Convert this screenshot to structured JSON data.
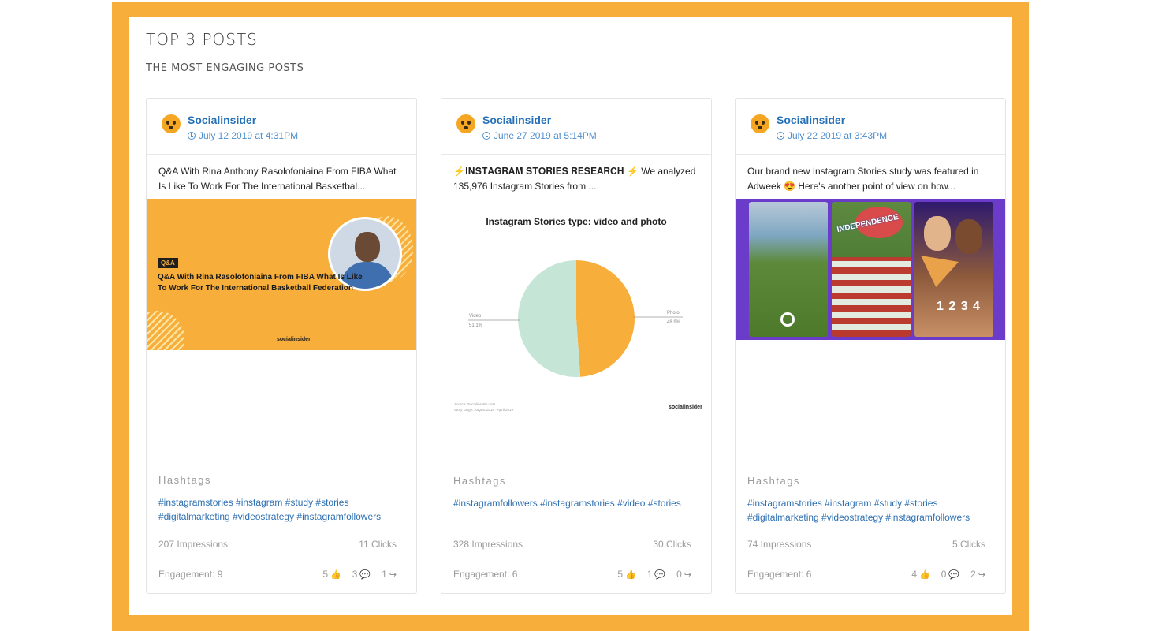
{
  "header": {
    "title": "TOP 3 POSTS",
    "subtitle": "THE MOST ENGAGING POSTS"
  },
  "colors": {
    "frame": "#f7ae3b",
    "link": "#2470b8",
    "hashtag": "#2c6fb1",
    "muted": "#9a9a9a"
  },
  "labels": {
    "hashtags": "Hashtags"
  },
  "posts": [
    {
      "page_name": "Socialinsider",
      "date": "July 12 2019 at 4:31PM",
      "caption": "Q&A With Rina Anthony Rasolofoniaina From FIBA What Is Like To Work For The International Basketbal...",
      "media": {
        "tag": "Q&A",
        "headline": "Q&A With Rina Rasolofoniaina From FIBA What Is Like To Work For The International Basketball Federation",
        "brand": "socialinsider"
      },
      "hashtags": "#instagramstories #instagram #study #stories #digitalmarketing #videostrategy #instagramfollowers",
      "impressions": "207 Impressions",
      "clicks": "11 Clicks",
      "engagement": "Engagement: 9",
      "likes": "5",
      "comments": "3",
      "shares": "1"
    },
    {
      "page_name": "Socialinsider",
      "date": "June 27 2019 at 5:14PM",
      "caption": "⚡𝐈𝐍𝐒𝐓𝐀𝐆𝐑𝐀𝐌 𝐒𝐓𝐎𝐑𝐈𝐄𝐒 𝐑𝐄𝐒𝐄𝐀𝐑𝐂𝐇 ⚡ We analyzed 135,976 Instagram Stories from ...",
      "media": {
        "chart_title": "Instagram Stories type: video and photo",
        "brand": "socialinsider",
        "source_line1": "Source: Socialinsider data",
        "source_line2": "Story range: August 2018 - April 2019"
      },
      "hashtags": "#instagramfollowers #instagramstories #video #stories",
      "impressions": "328 Impressions",
      "clicks": "30 Clicks",
      "engagement": "Engagement: 6",
      "likes": "5",
      "comments": "1",
      "shares": "0"
    },
    {
      "page_name": "Socialinsider",
      "date": "July 22 2019 at 3:43PM",
      "caption": "Our brand new Instagram Stories study was featured in Adweek 😍 Here's another point of view on how...",
      "media": {
        "sticker": "INDEPENDENCE",
        "counter": "1 2 3 4"
      },
      "hashtags": "#instagramstories #instagram #study #stories #digitalmarketing #videostrategy #instagramfollowers",
      "impressions": "74 Impressions",
      "clicks": "5 Clicks",
      "engagement": "Engagement: 6",
      "likes": "4",
      "comments": "0",
      "shares": "2"
    }
  ],
  "chart_data": {
    "type": "pie",
    "title": "Instagram Stories type: video and photo",
    "categories": [
      "Video",
      "Photo"
    ],
    "values": [
      51.1,
      48.9
    ],
    "value_labels": [
      "51.1%",
      "48.9%"
    ],
    "colors": [
      "#c5e6d7",
      "#f7ae3b"
    ]
  }
}
